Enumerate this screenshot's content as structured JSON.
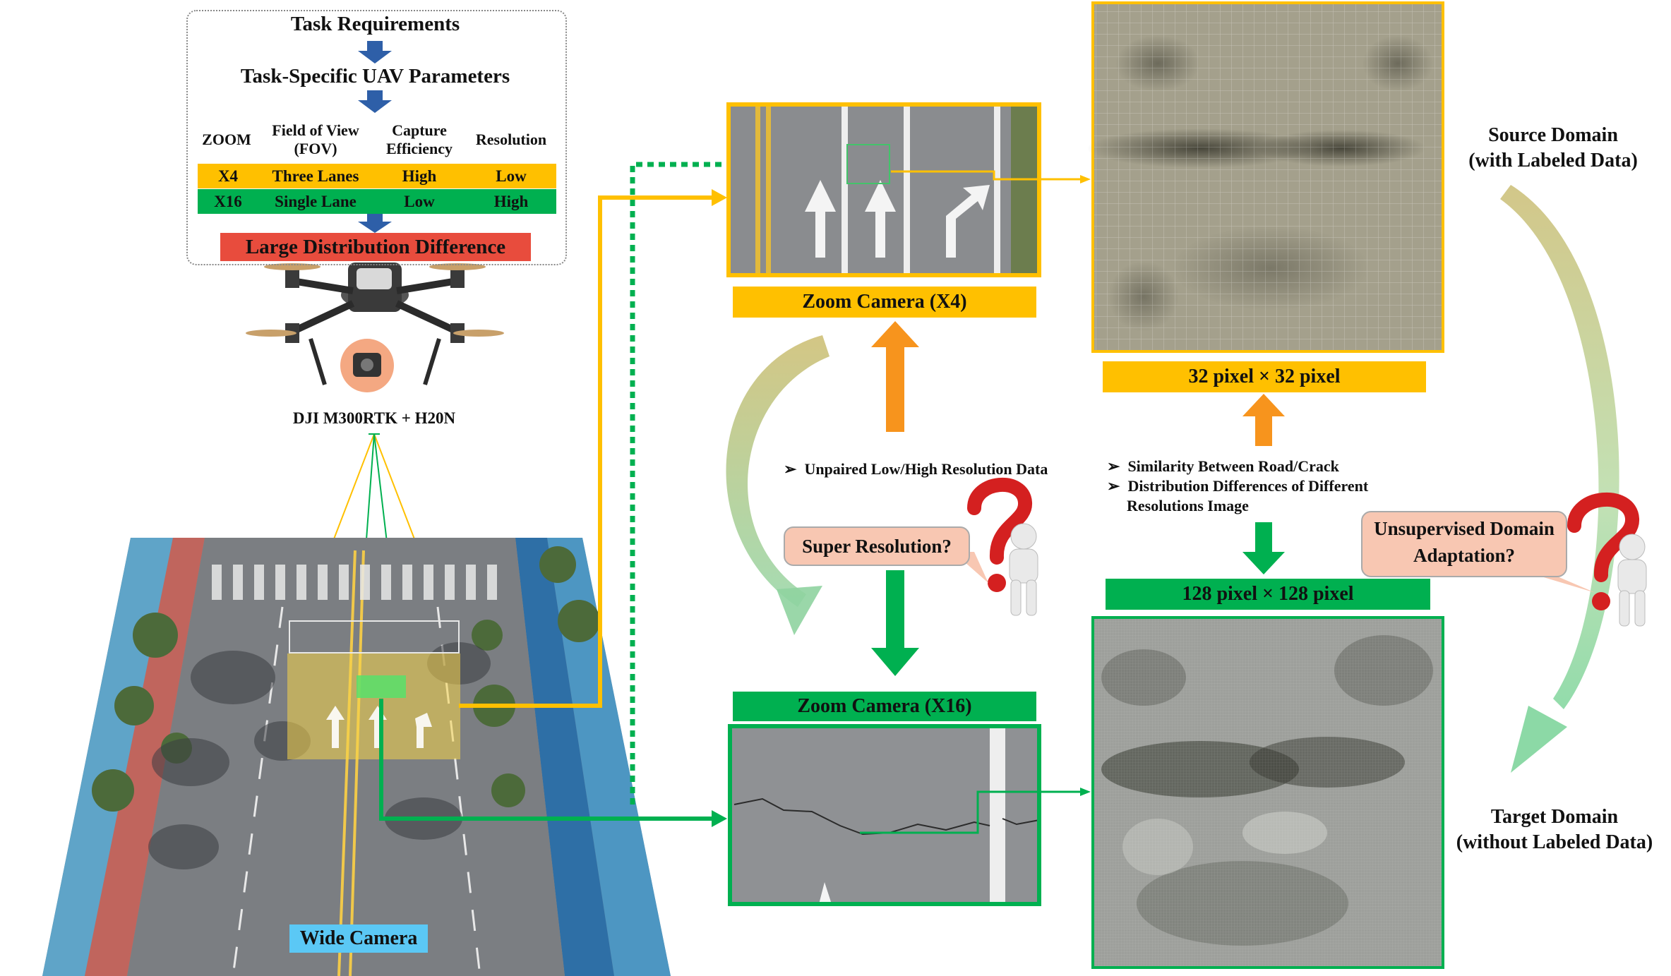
{
  "task": {
    "title": "Task Requirements",
    "subtitle": "Task-Specific UAV Parameters",
    "headers": [
      "ZOOM",
      "Field of View (FOV)",
      "Capture Efficiency",
      "Resolution"
    ],
    "rows": [
      {
        "zoom": "X4",
        "fov": "Three Lanes",
        "efficiency": "High",
        "resolution": "Low",
        "color": "#ffc000"
      },
      {
        "zoom": "X16",
        "fov": "Single Lane",
        "efficiency": "Low",
        "resolution": "High",
        "color": "#00b050"
      }
    ],
    "conclusion": "Large Distribution Difference",
    "conclusion_color": "#e84c3d"
  },
  "drone_label": "DJI M300RTK + H20N",
  "wide_camera_label": "Wide Camera",
  "zoom_x4_label": "Zoom Camera  (X4)",
  "zoom_x16_label": "Zoom Camera  (X16)",
  "low_res_label": "32 pixel × 32 pixel",
  "high_res_label": "128 pixel × 128 pixel",
  "unpaired_note": "Unpaired Low/High Resolution Data",
  "similarity_notes": [
    "Similarity Between Road/Crack",
    "Distribution Differences of Different",
    "Resolutions Image"
  ],
  "super_resolution_q": "Super Resolution?",
  "uda_q": [
    "Unsupervised Domain",
    "Adaptation?"
  ],
  "source_domain": [
    "Source Domain",
    "(with Labeled Data)"
  ],
  "target_domain": [
    "Target Domain",
    "(without Labeled Data)"
  ],
  "colors": {
    "yellow": "#ffc000",
    "green": "#00b050",
    "orange": "#f7941d",
    "highlight": "#5bc8f5"
  }
}
